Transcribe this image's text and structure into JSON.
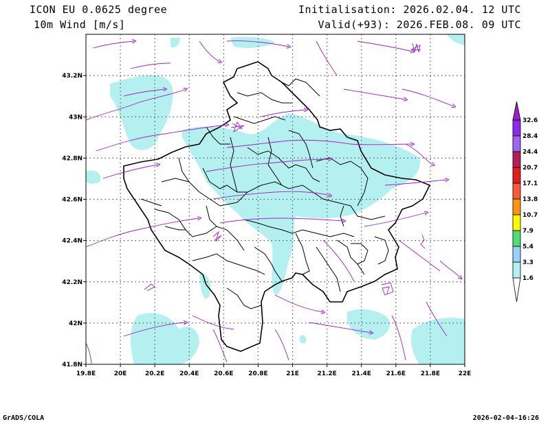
{
  "header": {
    "model": "ICON EU 0.0625 degree",
    "variable": "10m Wind [m/s]",
    "init": "Initialisation: 2026.02.04. 12 UTC",
    "valid": "Valid(+93): 2026.FEB.08. 09 UTC"
  },
  "footer": {
    "credit": "GrADS/COLA",
    "timestamp": "2026-02-04-16:26"
  },
  "axes": {
    "x_ticks": [
      "19.8E",
      "20E",
      "20.2E",
      "20.4E",
      "20.6E",
      "20.8E",
      "21E",
      "21.2E",
      "21.4E",
      "21.6E",
      "21.8E",
      "22E"
    ],
    "y_ticks": [
      "43.2N",
      "43N",
      "42.8N",
      "42.6N",
      "42.4N",
      "42.2N",
      "42N",
      "41.8N"
    ],
    "lon_range": [
      19.8,
      22.0
    ],
    "lat_range": [
      41.8,
      43.4
    ]
  },
  "legend": {
    "levels": [
      "1.6",
      "3.3",
      "5.4",
      "7.9",
      "10.7",
      "13.8",
      "17.1",
      "20.7",
      "24.4",
      "28.4",
      "32.6"
    ],
    "colors": [
      "#ffffff",
      "#b4f0f0",
      "#96d2fa",
      "#50dc78",
      "#fafa00",
      "#fa9614",
      "#fa5a3c",
      "#e11e1e",
      "#b41e5a",
      "#a064f0",
      "#8c28f0",
      "#a020c8"
    ]
  },
  "colors": {
    "wind_fill": "#b4f0f0",
    "streamline": "#a020c8",
    "border": "#000000",
    "grid": "#555555"
  }
}
